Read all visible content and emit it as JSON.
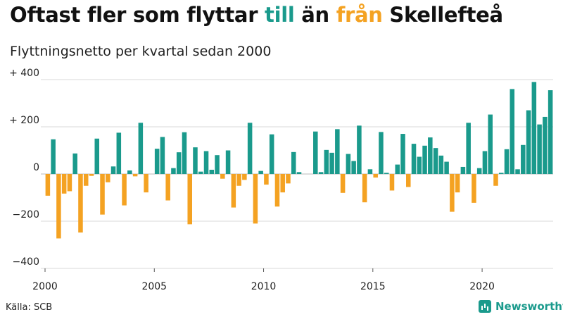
{
  "title": {
    "part1": "Oftast fler som flyttar ",
    "in_word": "till",
    "part2": " än ",
    "out_word": "från",
    "part3": " Skellefteå"
  },
  "subtitle": "Flyttningsnetto per kvartal sedan 2000",
  "source": "Källa: SCB",
  "brand": {
    "name": "Newsworthy",
    "icon": "bar-chart-icon"
  },
  "colors": {
    "positive": "#1a9a8c",
    "negative": "#f4a222",
    "grid": "#d9d9d9"
  },
  "chart_data": {
    "type": "bar",
    "x_start": "2000 Q1",
    "x_ticks": [
      "2000",
      "2005",
      "2010",
      "2015",
      "2020"
    ],
    "y_ticks": [
      "+ 400",
      "+ 200",
      "0",
      "−200",
      "−400"
    ],
    "ylim": [
      -400,
      400
    ],
    "grid": true,
    "values": [
      -92,
      147,
      -273,
      -83,
      -73,
      87,
      -248,
      -50,
      -8,
      150,
      -172,
      -35,
      32,
      175,
      -133,
      15,
      -10,
      217,
      -78,
      0,
      107,
      157,
      -112,
      25,
      92,
      177,
      -213,
      113,
      10,
      97,
      18,
      80,
      -20,
      100,
      -142,
      -50,
      -25,
      217,
      -210,
      13,
      -45,
      168,
      -138,
      -78,
      -40,
      93,
      8,
      0,
      0,
      180,
      8,
      102,
      90,
      190,
      -80,
      85,
      55,
      205,
      -120,
      20,
      -15,
      178,
      5,
      -70,
      40,
      170,
      -55,
      128,
      73,
      120,
      155,
      110,
      78,
      52,
      -160,
      -78,
      30,
      217,
      -122,
      25,
      97,
      252,
      -50,
      5,
      105,
      360,
      20,
      123,
      270,
      390,
      210,
      242,
      355
    ]
  }
}
